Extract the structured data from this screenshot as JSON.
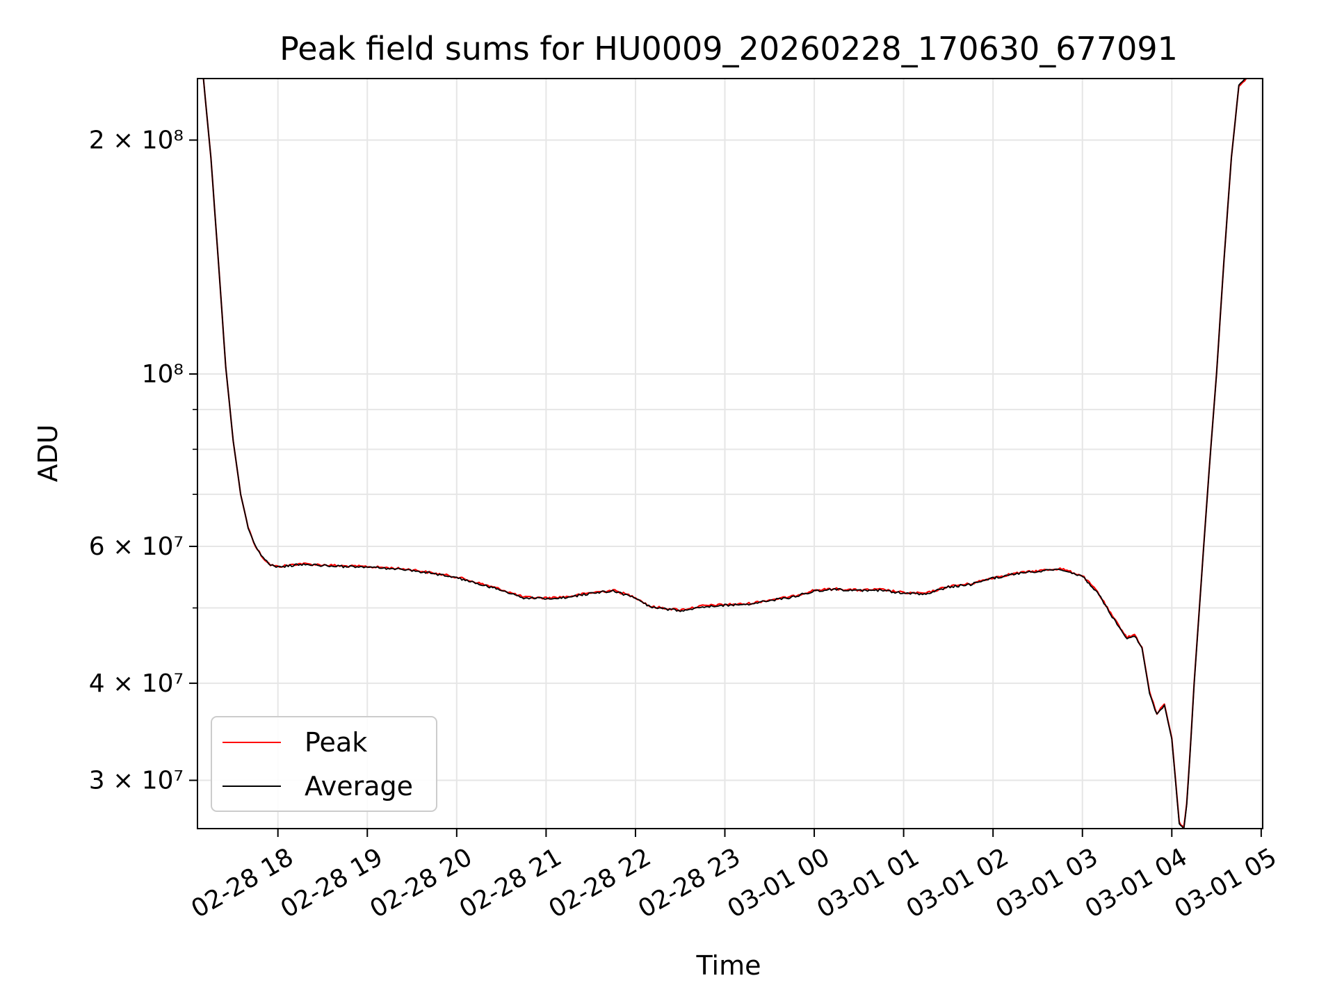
{
  "chart_data": {
    "type": "line",
    "title": "Peak field sums for HU0009_20260228_170630_677091",
    "xlabel": "Time",
    "ylabel": "ADU",
    "yscale": "log",
    "ylim": [
      26000000,
      240000000
    ],
    "xlim": [
      "2026-02-28 17:06",
      "2026-03-01 05:01"
    ],
    "grid": true,
    "legend_position": "lower-left",
    "x_tick_labels": [
      "02-28 18",
      "02-28 19",
      "02-28 20",
      "02-28 21",
      "02-28 22",
      "02-28 23",
      "03-01 00",
      "03-01 01",
      "03-01 02",
      "03-01 03",
      "03-01 04",
      "03-01 05"
    ],
    "x_tick_times": [
      "2026-02-28 18:00",
      "2026-02-28 19:00",
      "2026-02-28 20:00",
      "2026-02-28 21:00",
      "2026-02-28 22:00",
      "2026-02-28 23:00",
      "2026-03-01 00:00",
      "2026-03-01 01:00",
      "2026-03-01 02:00",
      "2026-03-01 03:00",
      "2026-03-01 04:00",
      "2026-03-01 05:00"
    ],
    "y_tick_labels": [
      "3 × 10⁷",
      "4 × 10⁷",
      "6 × 10⁷",
      "10⁸",
      "2 × 10⁸"
    ],
    "y_tick_values": [
      30000000,
      40000000,
      60000000,
      100000000,
      200000000
    ],
    "y_minor_values": [
      50000000,
      70000000,
      80000000,
      90000000
    ],
    "x": [
      "2026-02-28 17:10",
      "2026-02-28 17:15",
      "2026-02-28 17:20",
      "2026-02-28 17:25",
      "2026-02-28 17:30",
      "2026-02-28 17:35",
      "2026-02-28 17:40",
      "2026-02-28 17:45",
      "2026-02-28 17:50",
      "2026-02-28 17:55",
      "2026-02-28 18:00",
      "2026-02-28 18:15",
      "2026-02-28 18:30",
      "2026-02-28 18:45",
      "2026-02-28 19:00",
      "2026-02-28 19:15",
      "2026-02-28 19:30",
      "2026-02-28 19:45",
      "2026-02-28 20:00",
      "2026-02-28 20:15",
      "2026-02-28 20:30",
      "2026-02-28 20:45",
      "2026-02-28 21:00",
      "2026-02-28 21:15",
      "2026-02-28 21:30",
      "2026-02-28 21:45",
      "2026-02-28 22:00",
      "2026-02-28 22:10",
      "2026-02-28 22:30",
      "2026-02-28 22:45",
      "2026-02-28 23:00",
      "2026-02-28 23:15",
      "2026-02-28 23:30",
      "2026-02-28 23:45",
      "2026-03-01 00:00",
      "2026-03-01 00:15",
      "2026-03-01 00:30",
      "2026-03-01 00:45",
      "2026-03-01 01:00",
      "2026-03-01 01:15",
      "2026-03-01 01:30",
      "2026-03-01 01:45",
      "2026-03-01 02:00",
      "2026-03-01 02:15",
      "2026-03-01 02:30",
      "2026-03-01 02:45",
      "2026-03-01 03:00",
      "2026-03-01 03:10",
      "2026-03-01 03:20",
      "2026-03-01 03:30",
      "2026-03-01 03:35",
      "2026-03-01 03:40",
      "2026-03-01 03:45",
      "2026-03-01 03:50",
      "2026-03-01 03:55",
      "2026-03-01 04:00",
      "2026-03-01 04:05",
      "2026-03-01 04:08",
      "2026-03-01 04:10",
      "2026-03-01 04:12",
      "2026-03-01 04:15",
      "2026-03-01 04:20",
      "2026-03-01 04:25",
      "2026-03-01 04:30",
      "2026-03-01 04:35",
      "2026-03-01 04:40",
      "2026-03-01 04:45",
      "2026-03-01 04:50"
    ],
    "series": [
      {
        "name": "Peak",
        "color": "#ff0000",
        "values": [
          240000000,
          190000000,
          140000000,
          102000000,
          82000000,
          70000000,
          63500000,
          60000000,
          58000000,
          56800000,
          56500000,
          57000000,
          56800000,
          56600000,
          56500000,
          56300000,
          56000000,
          55400000,
          54800000,
          53800000,
          52800000,
          51600000,
          51500000,
          51700000,
          52300000,
          52700000,
          51600000,
          50200000,
          49700000,
          50300000,
          50500000,
          50600000,
          51200000,
          51700000,
          52700000,
          52900000,
          52700000,
          52800000,
          52300000,
          52200000,
          53300000,
          53700000,
          54700000,
          55400000,
          55800000,
          56200000,
          55000000,
          52500000,
          48800000,
          45800000,
          46200000,
          44500000,
          39000000,
          36500000,
          37600000,
          34000000,
          26500000,
          26000000,
          28000000,
          32000000,
          40000000,
          55000000,
          75000000,
          100000000,
          140000000,
          190000000,
          235000000,
          240000000
        ]
      },
      {
        "name": "Average",
        "color": "#000000",
        "values": [
          240000000,
          190000000,
          140000000,
          102000000,
          82000000,
          70000000,
          63500000,
          60000000,
          58000000,
          56700000,
          56400000,
          56900000,
          56700000,
          56500000,
          56400000,
          56200000,
          55900000,
          55300000,
          54700000,
          53700000,
          52700000,
          51500000,
          51400000,
          51600000,
          52200000,
          52600000,
          51500000,
          50100000,
          49600000,
          50200000,
          50400000,
          50500000,
          51100000,
          51600000,
          52600000,
          52800000,
          52600000,
          52700000,
          52200000,
          52100000,
          53200000,
          53600000,
          54600000,
          55300000,
          55700000,
          56100000,
          54900000,
          52400000,
          48700000,
          45700000,
          46100000,
          44400000,
          38900000,
          36400000,
          37500000,
          33900000,
          26400000,
          25900000,
          27900000,
          31900000,
          39900000,
          54900000,
          74900000,
          99900000,
          139900000,
          189900000,
          234900000,
          240000000
        ]
      }
    ]
  }
}
